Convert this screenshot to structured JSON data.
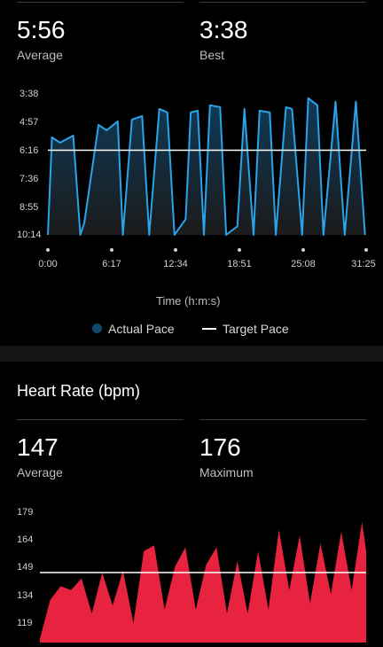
{
  "pace": {
    "average": {
      "value": "5:56",
      "label": "Average"
    },
    "best": {
      "value": "3:38",
      "label": "Best"
    },
    "chart_data": {
      "type": "area",
      "y_ticks": [
        "3:38",
        "4:57",
        "6:16",
        "7:36",
        "8:55",
        "10:14"
      ],
      "x_ticks": [
        "0:00",
        "6:17",
        "12:34",
        "18:51",
        "25:08",
        "31:25"
      ],
      "xlabel": "Time (h:m:s)",
      "target_pace": "6:16",
      "series": [
        {
          "name": "Actual Pace",
          "color": "#2aa3e8",
          "x": [
            0.0,
            0.4,
            1.2,
            2.5,
            3.2,
            3.6,
            5.0,
            5.8,
            6.9,
            7.4,
            8.3,
            9.3,
            10.0,
            11.0,
            11.8,
            12.5,
            13.6,
            14.1,
            14.8,
            15.4,
            16.0,
            17.0,
            17.6,
            18.7,
            19.4,
            20.3,
            20.9,
            21.9,
            22.5,
            23.5,
            24.1,
            25.1,
            25.7,
            26.6,
            27.2,
            28.4,
            29.3,
            30.4,
            31.3
          ],
          "y": [
            "10:14",
            "5:40",
            "5:55",
            "5:35",
            "10:14",
            "9:40",
            "5:05",
            "5:20",
            "4:55",
            "10:14",
            "4:50",
            "4:40",
            "10:14",
            "4:20",
            "4:30",
            "10:14",
            "9:30",
            "4:30",
            "4:25",
            "10:14",
            "4:10",
            "4:15",
            "10:14",
            "9:50",
            "4:20",
            "10:14",
            "4:25",
            "4:30",
            "10:14",
            "4:15",
            "4:20",
            "10:14",
            "3:50",
            "4:10",
            "10:14",
            "4:00",
            "10:14",
            "4:00",
            "10:14"
          ]
        },
        {
          "name": "Target Pace",
          "color": "#ffffff"
        }
      ]
    }
  },
  "heart_rate": {
    "title": "Heart Rate (bpm)",
    "average": {
      "value": "147",
      "label": "Average"
    },
    "maximum": {
      "value": "176",
      "label": "Maximum"
    },
    "chart_data": {
      "type": "area",
      "y_ticks": [
        "179",
        "164",
        "149",
        "134",
        "119"
      ],
      "ylim": [
        113,
        180
      ],
      "reference_line": 149,
      "series": [
        {
          "name": "Heart Rate",
          "color": "#e8233f",
          "x": [
            0,
            1,
            2,
            3,
            4,
            5,
            6,
            7,
            8,
            9,
            10,
            11,
            12,
            13,
            14,
            15,
            16,
            17,
            18,
            19,
            20,
            21,
            22,
            23,
            24,
            25,
            26,
            27,
            28,
            29,
            30,
            31,
            31.4
          ],
          "y": [
            115,
            135,
            142,
            140,
            146,
            128,
            149,
            132,
            150,
            123,
            160,
            163,
            130,
            152,
            162,
            130,
            153,
            162,
            128,
            155,
            128,
            160,
            130,
            171,
            140,
            168,
            133,
            164,
            138,
            170,
            140,
            175,
            160
          ]
        }
      ]
    }
  }
}
